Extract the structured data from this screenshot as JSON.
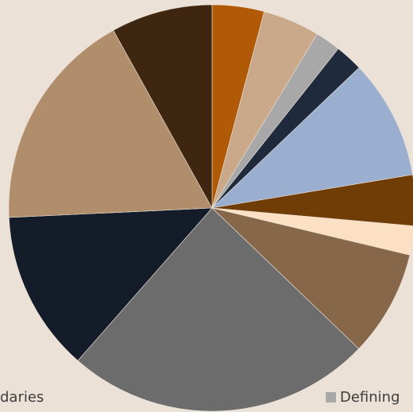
{
  "chart_data": {
    "type": "pie",
    "title": "",
    "slices": [
      {
        "value": 4.3,
        "color": "#b05a07"
      },
      {
        "value": 4.7,
        "color": "#c9a98a"
      },
      {
        "value": 2.1,
        "color": "#a8a8a8"
      },
      {
        "value": 2.3,
        "color": "#1f2a3d"
      },
      {
        "value": 9.9,
        "color": "#9aafcf"
      },
      {
        "value": 4.2,
        "color": "#6f3d05"
      },
      {
        "value": 2.4,
        "color": "#fbe0c3"
      },
      {
        "value": 8.8,
        "color": "#87674a"
      },
      {
        "value": 25.3,
        "color": "#6c6c6c"
      },
      {
        "value": 13.3,
        "color": "#141c2a"
      },
      {
        "value": 18.4,
        "color": "#b08d6b"
      },
      {
        "value": 8.4,
        "color": "#3f2611"
      }
    ],
    "legend": [
      {
        "label": "daries",
        "color": ""
      },
      {
        "label": "Defining",
        "color": "#a8a8a8"
      }
    ],
    "legend_position": "bottom"
  }
}
